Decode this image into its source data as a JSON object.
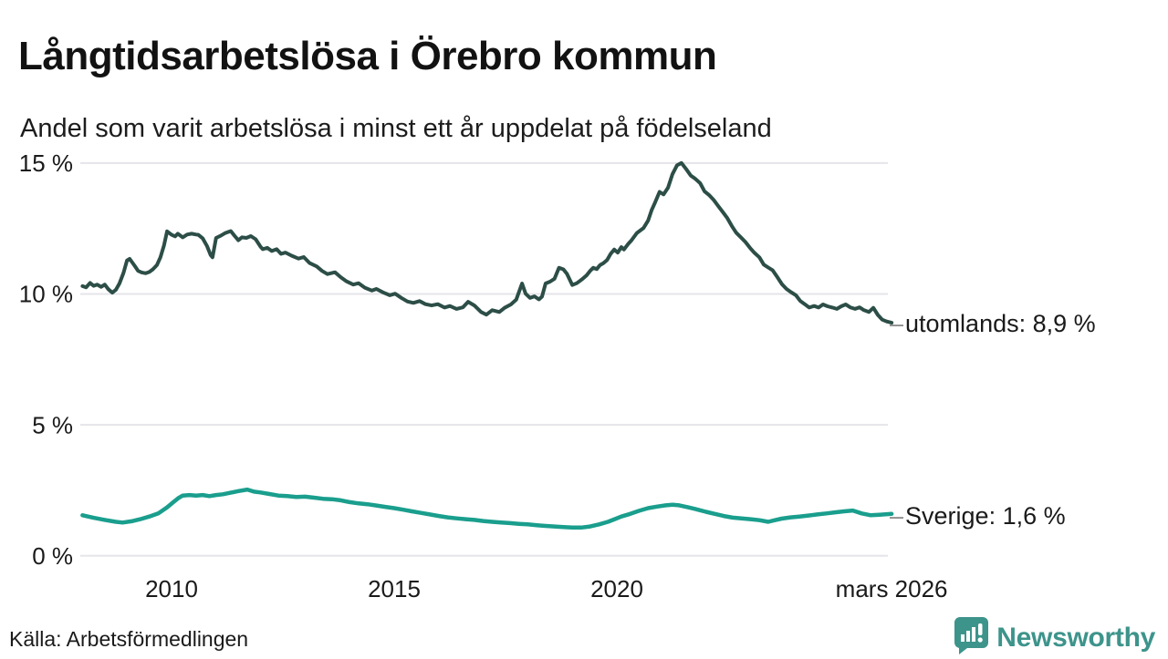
{
  "header": {
    "title": "Långtidsarbetslösa i Örebro kommun",
    "subtitle": "Andel som varit arbetslösa i minst ett år uppdelat på födelseland"
  },
  "footer": {
    "source": "Källa: Arbetsförmedlingen",
    "brand": "Newsworthy"
  },
  "colors": {
    "utomlands_line": "#2c4e47",
    "sverige_line": "#1a9e8d",
    "gridline": "#e5e5ea",
    "brand_teal": "#3d948b",
    "dash_gray": "#8a8a8a"
  },
  "chart_data": {
    "type": "line",
    "title": "Långtidsarbetslösa i Örebro kommun",
    "subtitle": "Andel som varit arbetslösa i minst ett år uppdelat på födelseland",
    "xlabel": "",
    "ylabel": "",
    "grid": true,
    "legend_position": "end-of-line labels, right side",
    "xlim": [
      2008.0,
      2026.17
    ],
    "ylim": [
      0,
      15.5
    ],
    "y_ticks": [
      {
        "label": "15 %",
        "v": 15
      },
      {
        "label": "10 %",
        "v": 10
      },
      {
        "label": "5 %",
        "v": 5
      },
      {
        "label": "0 %",
        "v": 0
      }
    ],
    "x_ticks": [
      {
        "label": "2010",
        "t": 2010
      },
      {
        "label": "2015",
        "t": 2015
      },
      {
        "label": "2020",
        "t": 2020
      },
      {
        "label": "mars 2026",
        "t": 2026.17
      }
    ],
    "end_label_dash": "–",
    "series": [
      {
        "name": "utomlands",
        "end_label": "utomlands: 8,9 %",
        "end_value": 8.9,
        "color": "#2c4e47",
        "stroke_width": 4,
        "points": [
          [
            2008.0,
            10.3
          ],
          [
            2008.08,
            10.25
          ],
          [
            2008.17,
            10.42
          ],
          [
            2008.25,
            10.31
          ],
          [
            2008.33,
            10.36
          ],
          [
            2008.42,
            10.27
          ],
          [
            2008.5,
            10.36
          ],
          [
            2008.58,
            10.18
          ],
          [
            2008.67,
            10.05
          ],
          [
            2008.75,
            10.16
          ],
          [
            2008.83,
            10.4
          ],
          [
            2008.92,
            10.8
          ],
          [
            2009.0,
            11.28
          ],
          [
            2009.06,
            11.34
          ],
          [
            2009.17,
            11.08
          ],
          [
            2009.25,
            10.88
          ],
          [
            2009.33,
            10.82
          ],
          [
            2009.42,
            10.79
          ],
          [
            2009.5,
            10.84
          ],
          [
            2009.58,
            10.94
          ],
          [
            2009.67,
            11.1
          ],
          [
            2009.75,
            11.4
          ],
          [
            2009.83,
            11.85
          ],
          [
            2009.9,
            12.39
          ],
          [
            2010.0,
            12.26
          ],
          [
            2010.08,
            12.2
          ],
          [
            2010.14,
            12.3
          ],
          [
            2010.25,
            12.16
          ],
          [
            2010.35,
            12.27
          ],
          [
            2010.45,
            12.3
          ],
          [
            2010.55,
            12.27
          ],
          [
            2010.6,
            12.26
          ],
          [
            2010.7,
            12.12
          ],
          [
            2010.8,
            11.82
          ],
          [
            2010.88,
            11.48
          ],
          [
            2010.92,
            11.4
          ],
          [
            2011.0,
            12.14
          ],
          [
            2011.1,
            12.22
          ],
          [
            2011.2,
            12.32
          ],
          [
            2011.33,
            12.4
          ],
          [
            2011.42,
            12.21
          ],
          [
            2011.5,
            12.05
          ],
          [
            2011.58,
            12.16
          ],
          [
            2011.68,
            12.14
          ],
          [
            2011.78,
            12.21
          ],
          [
            2011.89,
            12.09
          ],
          [
            2012.0,
            11.8
          ],
          [
            2012.05,
            11.71
          ],
          [
            2012.15,
            11.76
          ],
          [
            2012.25,
            11.64
          ],
          [
            2012.36,
            11.71
          ],
          [
            2012.46,
            11.53
          ],
          [
            2012.56,
            11.58
          ],
          [
            2012.7,
            11.46
          ],
          [
            2012.85,
            11.35
          ],
          [
            2012.97,
            11.41
          ],
          [
            2013.1,
            11.18
          ],
          [
            2013.26,
            11.05
          ],
          [
            2013.38,
            10.88
          ],
          [
            2013.5,
            10.76
          ],
          [
            2013.67,
            10.83
          ],
          [
            2013.8,
            10.64
          ],
          [
            2013.93,
            10.48
          ],
          [
            2014.08,
            10.36
          ],
          [
            2014.2,
            10.41
          ],
          [
            2014.34,
            10.24
          ],
          [
            2014.5,
            10.13
          ],
          [
            2014.6,
            10.19
          ],
          [
            2014.75,
            10.06
          ],
          [
            2014.9,
            9.95
          ],
          [
            2015.02,
            10.01
          ],
          [
            2015.16,
            9.85
          ],
          [
            2015.3,
            9.71
          ],
          [
            2015.43,
            9.66
          ],
          [
            2015.57,
            9.73
          ],
          [
            2015.7,
            9.61
          ],
          [
            2015.84,
            9.56
          ],
          [
            2015.98,
            9.61
          ],
          [
            2016.13,
            9.48
          ],
          [
            2016.25,
            9.54
          ],
          [
            2016.4,
            9.43
          ],
          [
            2016.54,
            9.49
          ],
          [
            2016.66,
            9.7
          ],
          [
            2016.8,
            9.56
          ],
          [
            2016.95,
            9.31
          ],
          [
            2017.07,
            9.21
          ],
          [
            2017.2,
            9.38
          ],
          [
            2017.36,
            9.31
          ],
          [
            2017.48,
            9.47
          ],
          [
            2017.62,
            9.6
          ],
          [
            2017.74,
            9.78
          ],
          [
            2017.87,
            10.4
          ],
          [
            2017.95,
            10.01
          ],
          [
            2018.05,
            9.85
          ],
          [
            2018.15,
            9.91
          ],
          [
            2018.25,
            9.79
          ],
          [
            2018.32,
            9.9
          ],
          [
            2018.4,
            10.4
          ],
          [
            2018.5,
            10.47
          ],
          [
            2018.6,
            10.58
          ],
          [
            2018.7,
            11.0
          ],
          [
            2018.8,
            10.94
          ],
          [
            2018.88,
            10.77
          ],
          [
            2019.0,
            10.34
          ],
          [
            2019.1,
            10.41
          ],
          [
            2019.22,
            10.56
          ],
          [
            2019.32,
            10.71
          ],
          [
            2019.4,
            10.88
          ],
          [
            2019.47,
            11.0
          ],
          [
            2019.55,
            10.95
          ],
          [
            2019.62,
            11.1
          ],
          [
            2019.7,
            11.18
          ],
          [
            2019.78,
            11.3
          ],
          [
            2019.86,
            11.53
          ],
          [
            2019.94,
            11.7
          ],
          [
            2020.02,
            11.58
          ],
          [
            2020.1,
            11.79
          ],
          [
            2020.16,
            11.7
          ],
          [
            2020.25,
            11.9
          ],
          [
            2020.33,
            12.05
          ],
          [
            2020.45,
            12.33
          ],
          [
            2020.6,
            12.52
          ],
          [
            2020.7,
            12.8
          ],
          [
            2020.78,
            13.2
          ],
          [
            2020.86,
            13.5
          ],
          [
            2020.96,
            13.9
          ],
          [
            2021.05,
            13.8
          ],
          [
            2021.15,
            14.06
          ],
          [
            2021.25,
            14.58
          ],
          [
            2021.35,
            14.91
          ],
          [
            2021.45,
            15.0
          ],
          [
            2021.56,
            14.76
          ],
          [
            2021.66,
            14.52
          ],
          [
            2021.76,
            14.4
          ],
          [
            2021.87,
            14.23
          ],
          [
            2021.97,
            13.92
          ],
          [
            2022.07,
            13.78
          ],
          [
            2022.17,
            13.6
          ],
          [
            2022.27,
            13.37
          ],
          [
            2022.38,
            13.13
          ],
          [
            2022.48,
            12.9
          ],
          [
            2022.58,
            12.6
          ],
          [
            2022.68,
            12.34
          ],
          [
            2022.79,
            12.15
          ],
          [
            2022.89,
            11.98
          ],
          [
            2022.99,
            11.76
          ],
          [
            2023.09,
            11.57
          ],
          [
            2023.2,
            11.4
          ],
          [
            2023.3,
            11.12
          ],
          [
            2023.4,
            11.01
          ],
          [
            2023.5,
            10.9
          ],
          [
            2023.6,
            10.65
          ],
          [
            2023.71,
            10.37
          ],
          [
            2023.81,
            10.19
          ],
          [
            2023.91,
            10.07
          ],
          [
            2024.02,
            9.95
          ],
          [
            2024.12,
            9.73
          ],
          [
            2024.22,
            9.61
          ],
          [
            2024.32,
            9.48
          ],
          [
            2024.43,
            9.54
          ],
          [
            2024.53,
            9.48
          ],
          [
            2024.63,
            9.6
          ],
          [
            2024.73,
            9.53
          ],
          [
            2024.84,
            9.48
          ],
          [
            2024.94,
            9.43
          ],
          [
            2025.04,
            9.53
          ],
          [
            2025.14,
            9.6
          ],
          [
            2025.25,
            9.48
          ],
          [
            2025.35,
            9.43
          ],
          [
            2025.45,
            9.49
          ],
          [
            2025.55,
            9.38
          ],
          [
            2025.66,
            9.31
          ],
          [
            2025.76,
            9.47
          ],
          [
            2025.86,
            9.2
          ],
          [
            2025.96,
            9.02
          ],
          [
            2026.06,
            8.95
          ],
          [
            2026.17,
            8.9
          ]
        ]
      },
      {
        "name": "Sverige",
        "end_label": "Sverige: 1,6 %",
        "end_value": 1.6,
        "color": "#1a9e8d",
        "stroke_width": 4.5,
        "points": [
          [
            2008.0,
            1.55
          ],
          [
            2008.25,
            1.45
          ],
          [
            2008.5,
            1.37
          ],
          [
            2008.75,
            1.3
          ],
          [
            2008.9,
            1.27
          ],
          [
            2009.1,
            1.32
          ],
          [
            2009.3,
            1.4
          ],
          [
            2009.5,
            1.5
          ],
          [
            2009.7,
            1.62
          ],
          [
            2009.9,
            1.85
          ],
          [
            2010.04,
            2.05
          ],
          [
            2010.15,
            2.2
          ],
          [
            2010.25,
            2.3
          ],
          [
            2010.4,
            2.32
          ],
          [
            2010.55,
            2.3
          ],
          [
            2010.7,
            2.32
          ],
          [
            2010.85,
            2.28
          ],
          [
            2011.0,
            2.32
          ],
          [
            2011.15,
            2.35
          ],
          [
            2011.3,
            2.4
          ],
          [
            2011.5,
            2.47
          ],
          [
            2011.7,
            2.53
          ],
          [
            2011.85,
            2.45
          ],
          [
            2012.0,
            2.42
          ],
          [
            2012.2,
            2.36
          ],
          [
            2012.4,
            2.3
          ],
          [
            2012.6,
            2.28
          ],
          [
            2012.8,
            2.25
          ],
          [
            2013.0,
            2.26
          ],
          [
            2013.2,
            2.22
          ],
          [
            2013.4,
            2.18
          ],
          [
            2013.6,
            2.16
          ],
          [
            2013.8,
            2.12
          ],
          [
            2014.0,
            2.05
          ],
          [
            2014.2,
            2.0
          ],
          [
            2014.4,
            1.97
          ],
          [
            2014.6,
            1.92
          ],
          [
            2014.8,
            1.87
          ],
          [
            2015.0,
            1.82
          ],
          [
            2015.2,
            1.76
          ],
          [
            2015.4,
            1.7
          ],
          [
            2015.6,
            1.64
          ],
          [
            2015.8,
            1.58
          ],
          [
            2016.0,
            1.52
          ],
          [
            2016.2,
            1.47
          ],
          [
            2016.4,
            1.43
          ],
          [
            2016.6,
            1.4
          ],
          [
            2016.8,
            1.37
          ],
          [
            2017.0,
            1.33
          ],
          [
            2017.2,
            1.3
          ],
          [
            2017.4,
            1.27
          ],
          [
            2017.6,
            1.25
          ],
          [
            2017.8,
            1.22
          ],
          [
            2018.0,
            1.2
          ],
          [
            2018.2,
            1.17
          ],
          [
            2018.4,
            1.14
          ],
          [
            2018.6,
            1.12
          ],
          [
            2018.8,
            1.1
          ],
          [
            2019.0,
            1.08
          ],
          [
            2019.2,
            1.08
          ],
          [
            2019.4,
            1.12
          ],
          [
            2019.6,
            1.2
          ],
          [
            2019.8,
            1.3
          ],
          [
            2019.95,
            1.4
          ],
          [
            2020.1,
            1.5
          ],
          [
            2020.3,
            1.6
          ],
          [
            2020.5,
            1.72
          ],
          [
            2020.7,
            1.82
          ],
          [
            2020.9,
            1.88
          ],
          [
            2021.1,
            1.93
          ],
          [
            2021.25,
            1.95
          ],
          [
            2021.4,
            1.93
          ],
          [
            2021.6,
            1.85
          ],
          [
            2021.8,
            1.77
          ],
          [
            2022.0,
            1.68
          ],
          [
            2022.2,
            1.6
          ],
          [
            2022.4,
            1.52
          ],
          [
            2022.6,
            1.46
          ],
          [
            2022.8,
            1.43
          ],
          [
            2023.0,
            1.4
          ],
          [
            2023.2,
            1.36
          ],
          [
            2023.4,
            1.3
          ],
          [
            2023.55,
            1.36
          ],
          [
            2023.7,
            1.42
          ],
          [
            2023.9,
            1.47
          ],
          [
            2024.1,
            1.5
          ],
          [
            2024.3,
            1.54
          ],
          [
            2024.5,
            1.58
          ],
          [
            2024.7,
            1.62
          ],
          [
            2024.9,
            1.66
          ],
          [
            2025.1,
            1.7
          ],
          [
            2025.3,
            1.73
          ],
          [
            2025.5,
            1.62
          ],
          [
            2025.7,
            1.55
          ],
          [
            2025.9,
            1.57
          ],
          [
            2026.17,
            1.6
          ]
        ]
      }
    ]
  }
}
